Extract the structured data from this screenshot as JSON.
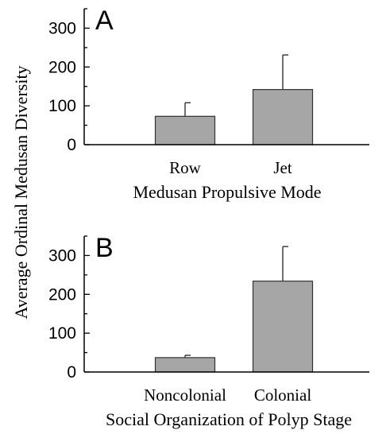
{
  "shared_ylabel": "Average Ordinal Medusan Diversity",
  "chart_data": [
    {
      "type": "bar",
      "panel_label": "A",
      "xlabel": "Medusan Propulsive Mode",
      "categories": [
        "Row",
        "Jet"
      ],
      "values": [
        73,
        142
      ],
      "error_upper": [
        108,
        231
      ],
      "ylim": [
        0,
        350
      ],
      "yticks": [
        0,
        100,
        200,
        300
      ],
      "bar_color": "#a6a6a6"
    },
    {
      "type": "bar",
      "panel_label": "B",
      "xlabel": "Social Organization of Polyp Stage",
      "categories": [
        "Noncolonial",
        "Colonial"
      ],
      "values": [
        37,
        234
      ],
      "error_upper": [
        43,
        323
      ],
      "ylim": [
        0,
        350
      ],
      "yticks": [
        0,
        100,
        200,
        300
      ],
      "bar_color": "#a6a6a6"
    }
  ]
}
